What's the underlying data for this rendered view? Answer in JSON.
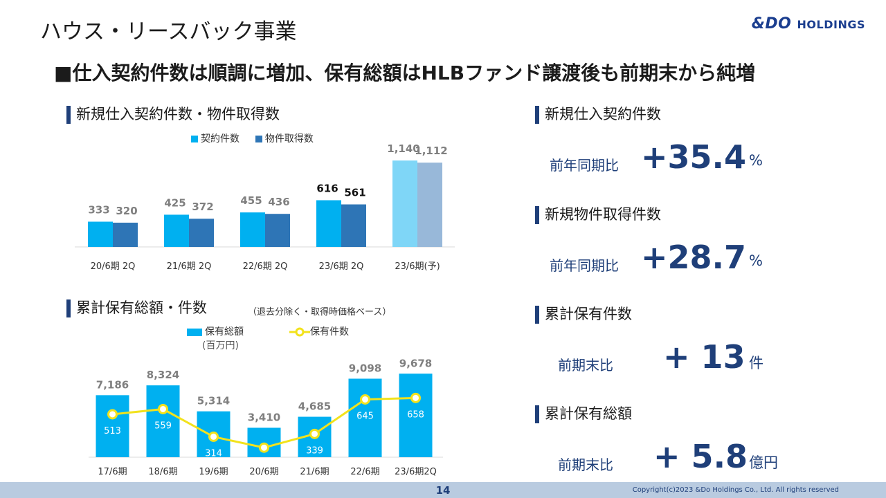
{
  "page": {
    "title": "ハウス・リースバック事業",
    "logo_main": "&DO",
    "logo_sub": "HOLDINGS",
    "headline": "■仕入契約件数は順調に増加、保有総額はHLBファンド譲渡後も前期末から純増",
    "page_number": "14",
    "copyright": "Copyright(c)2023 &Do Holdings Co., Ltd. All rights reserved"
  },
  "charts": {
    "top": {
      "heading": "新規仕入契約件数・物件取得数",
      "legend_a": "契約件数",
      "legend_b": "物件取得数"
    },
    "bottom": {
      "heading": "累計保有総額・件数",
      "note": "（退去分除く・取得時価格ベース）",
      "legend_bar": "保有総額",
      "legend_bar_unit": "(百万円)",
      "legend_line": "保有件数"
    }
  },
  "colors": {
    "contract": "#00b0f0",
    "acquired": "#2e75b6",
    "forecast_contract": "#7fd6f7",
    "forecast_acquired": "#98b8d9",
    "line": "#f2e21c",
    "accent": "#1f3f79",
    "footer": "#b9cbe0"
  },
  "kpis": [
    {
      "label": "新規仕入契約件数",
      "sub": "前年同期比",
      "value": "+35.4",
      "unit": "%"
    },
    {
      "label": "新規物件取得件数",
      "sub": "前年同期比",
      "value": "+28.7",
      "unit": "%"
    },
    {
      "label": "累計保有件数",
      "sub": "前期末比",
      "value": "+ 13",
      "unit": "件"
    },
    {
      "label": "累計保有総額",
      "sub": "前期末比",
      "value": "+ 5.8",
      "unit": "億円"
    }
  ],
  "chart_data": [
    {
      "type": "bar",
      "title": "新規仕入契約件数・物件取得数",
      "categories": [
        "20/6期 2Q",
        "21/6期 2Q",
        "22/6期 2Q",
        "23/6期 2Q",
        "23/6期(予)"
      ],
      "series": [
        {
          "name": "契約件数",
          "values": [
            333,
            425,
            455,
            616,
            1140
          ],
          "labels": [
            "333",
            "425",
            "455",
            "616",
            "1,140"
          ]
        },
        {
          "name": "物件取得数",
          "values": [
            320,
            372,
            436,
            561,
            1112
          ],
          "labels": [
            "320",
            "372",
            "436",
            "561",
            "1,112"
          ]
        }
      ],
      "ylim": [
        0,
        1250
      ],
      "legend": "top"
    },
    {
      "type": "bar",
      "title": "累計保有総額・件数",
      "categories": [
        "17/6期",
        "18/6期",
        "19/6期",
        "20/6期",
        "21/6期",
        "22/6期",
        "23/6期2Q"
      ],
      "series": [
        {
          "name": "保有総額",
          "values": [
            7186,
            8324,
            5314,
            3410,
            4685,
            9098,
            9678
          ],
          "labels": [
            "7,186",
            "8,324",
            "5,314",
            "3,410",
            "4,685",
            "9,098",
            "9,678"
          ]
        },
        {
          "name": "保有件数",
          "type": "line",
          "values": [
            513,
            559,
            314,
            217,
            339,
            645,
            658
          ],
          "labels": [
            "513",
            "559",
            "314",
            "217",
            "339",
            "645",
            "658"
          ]
        }
      ],
      "ylim": [
        0,
        10500
      ],
      "y2lim": [
        0,
        1450
      ],
      "legend": "top"
    }
  ]
}
